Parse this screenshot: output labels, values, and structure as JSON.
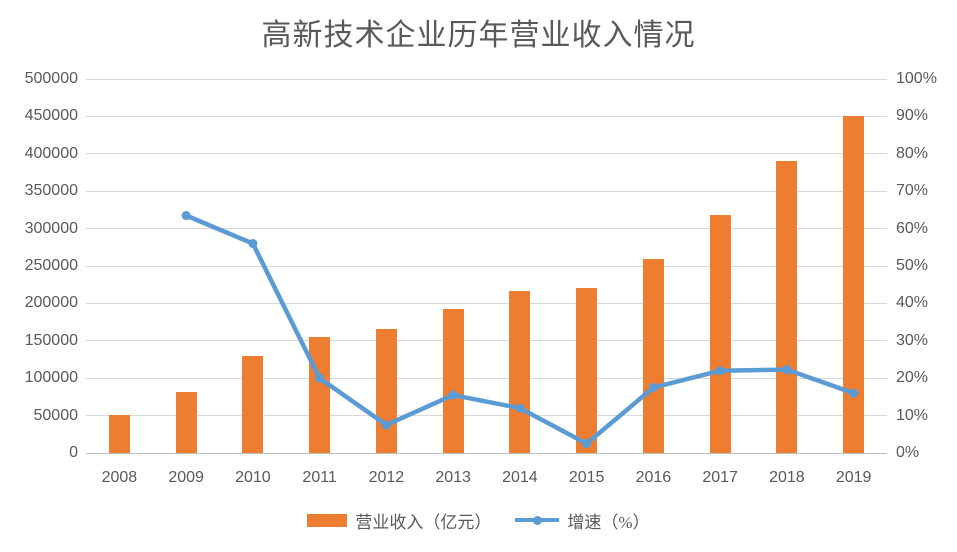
{
  "chart": {
    "title": "高新技术企业历年营业收入情况",
    "legend": {
      "revenue_label": "营业收入（亿元）",
      "growth_label": "增速（%）"
    }
  },
  "chart_data": {
    "type": "bar-line-combo",
    "title": "高新技术企业历年营业收入情况",
    "categories": [
      "2008",
      "2009",
      "2010",
      "2011",
      "2012",
      "2013",
      "2014",
      "2015",
      "2016",
      "2017",
      "2018",
      "2019"
    ],
    "series": [
      {
        "name": "营业收入（亿元）",
        "type": "bar",
        "axis": "left",
        "color": "#ED7D31",
        "values": [
          51000,
          82000,
          130000,
          155000,
          166000,
          193000,
          216000,
          221000,
          260000,
          318000,
          390000,
          450000
        ]
      },
      {
        "name": "增速（%）",
        "type": "line",
        "axis": "right",
        "color": "#5B9BD5",
        "values": [
          null,
          63.5,
          56,
          20,
          7.5,
          15.5,
          12,
          2.5,
          17.5,
          22,
          22.3,
          16
        ]
      }
    ],
    "left_axis": {
      "min": 0,
      "max": 500000,
      "ticks": [
        "500000",
        "450000",
        "400000",
        "350000",
        "300000",
        "250000",
        "200000",
        "150000",
        "100000",
        "50000",
        "0"
      ]
    },
    "right_axis": {
      "min": 0,
      "max": 100,
      "ticks": [
        "100%",
        "90%",
        "80%",
        "70%",
        "60%",
        "50%",
        "40%",
        "30%",
        "20%",
        "10%",
        "0%"
      ]
    },
    "grid": true,
    "legend_position": "bottom",
    "colors": {
      "gridline": "#d9d9d9",
      "axis_line": "#bfbfbf",
      "text": "#595959",
      "bar": "#ED7D31",
      "line": "#5B9BD5"
    }
  }
}
